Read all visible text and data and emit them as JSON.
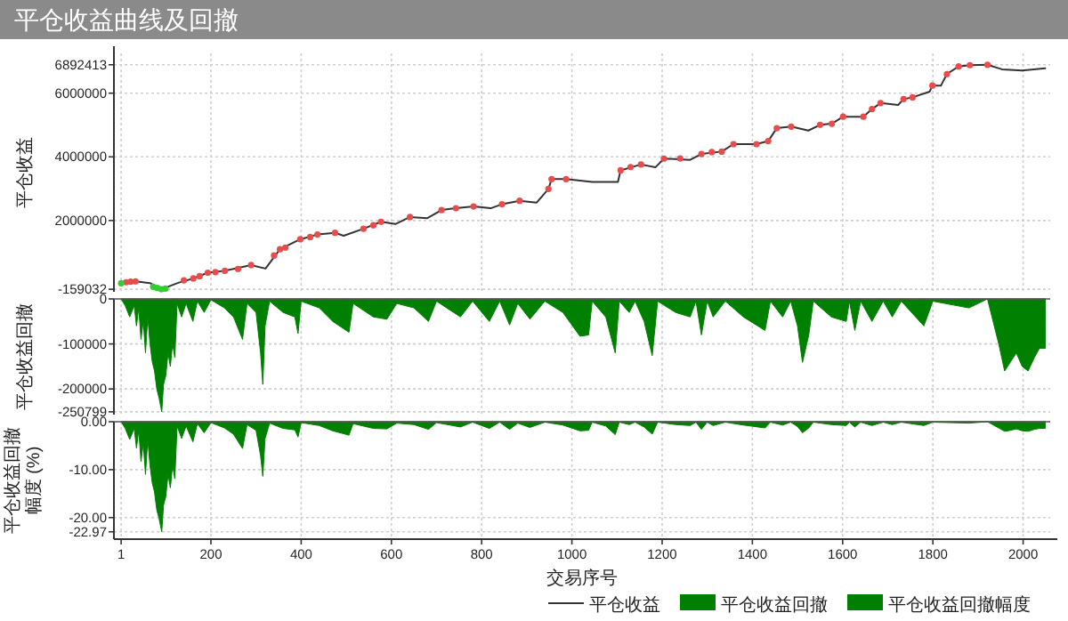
{
  "chart_data": [
    {
      "type": "line",
      "title": "平仓收益曲线及回撤",
      "ylabel": "平仓收益",
      "xlim": [
        -15,
        2060
      ],
      "xticks": [
        1,
        200,
        400,
        600,
        800,
        1000,
        1200,
        1400,
        1600,
        1800,
        2000
      ],
      "ylim": [
        -240000,
        7250000
      ],
      "yticks": [
        -159032,
        2000000,
        4000000,
        6000000,
        6892413
      ],
      "tick_labels": "y",
      "grid": true,
      "legend": "bottom",
      "series": [
        {
          "name": "平仓收益",
          "color": "#333333",
          "x": [
            1,
            33,
            65,
            90,
            129,
            161,
            193,
            231,
            289,
            321,
            353,
            398,
            436,
            475,
            494,
            538,
            577,
            609,
            641,
            679,
            711,
            743,
            782,
            820,
            845,
            884,
            922,
            948,
            955,
            987,
            1045,
            1102,
            1108,
            1153,
            1185,
            1204,
            1262,
            1287,
            1332,
            1358,
            1409,
            1435,
            1454,
            1486,
            1524,
            1550,
            1576,
            1601,
            1646,
            1665,
            1684,
            1723,
            1735,
            1755,
            1793,
            1799,
            1818,
            1831,
            1857,
            1882,
            1921,
            1953,
            1998,
            2049
          ],
          "values": [
            30000,
            88000,
            33000,
            -159032,
            50000,
            180000,
            360000,
            420000,
            600000,
            490000,
            1096000,
            1410000,
            1560000,
            1614000,
            1520000,
            1740000,
            1960000,
            1890000,
            2110000,
            2070000,
            2330000,
            2385000,
            2440000,
            2385000,
            2510000,
            2620000,
            2565000,
            2990000,
            3300000,
            3300000,
            3210000,
            3210000,
            3577000,
            3760000,
            3670000,
            3945000,
            3906000,
            4090000,
            4165000,
            4400000,
            4400000,
            4495000,
            4900000,
            4950000,
            4825000,
            5005000,
            5040000,
            5260000,
            5260000,
            5500000,
            5690000,
            5630000,
            5815000,
            5870000,
            6050000,
            6240000,
            6240000,
            6600000,
            6840000,
            6880000,
            6892413,
            6750000,
            6710000,
            6785000
          ]
        },
        {
          "type": "scatter",
          "color": "#e84c4c",
          "marker": "circle",
          "x": [
            12,
            22,
            33,
            140,
            161,
            175,
            193,
            210,
            231,
            260,
            289,
            340,
            353,
            365,
            398,
            420,
            436,
            475,
            538,
            560,
            577,
            641,
            711,
            743,
            782,
            845,
            884,
            948,
            955,
            987,
            1108,
            1130,
            1153,
            1204,
            1240,
            1287,
            1310,
            1332,
            1358,
            1409,
            1435,
            1454,
            1486,
            1550,
            1576,
            1601,
            1646,
            1665,
            1684,
            1735,
            1755,
            1799,
            1831,
            1857,
            1882,
            1921
          ],
          "values": [
            60000,
            80000,
            88000,
            120000,
            180000,
            250000,
            360000,
            380000,
            420000,
            480000,
            600000,
            900000,
            1096000,
            1150000,
            1410000,
            1480000,
            1560000,
            1614000,
            1740000,
            1850000,
            1960000,
            2110000,
            2330000,
            2385000,
            2440000,
            2510000,
            2620000,
            2990000,
            3300000,
            3300000,
            3577000,
            3680000,
            3760000,
            3945000,
            3950000,
            4090000,
            4150000,
            4165000,
            4400000,
            4400000,
            4495000,
            4900000,
            4950000,
            5005000,
            5040000,
            5260000,
            5260000,
            5500000,
            5690000,
            5815000,
            5870000,
            6240000,
            6600000,
            6840000,
            6880000,
            6892413
          ]
        },
        {
          "type": "scatter",
          "color": "#33cc33",
          "marker": "circle",
          "x": [
            1,
            72,
            81,
            90,
            99
          ],
          "values": [
            30000,
            -80000,
            -120000,
            -159032,
            -140000
          ]
        }
      ]
    },
    {
      "type": "area",
      "ylabel": "平仓收益回撤",
      "xlim": [
        -15,
        2060
      ],
      "xticks": [
        1,
        200,
        400,
        600,
        800,
        1000,
        1200,
        1400,
        1600,
        1800,
        2000
      ],
      "ylim": [
        -257000,
        0
      ],
      "yticks": [
        0,
        -100000,
        -200000,
        -250799
      ],
      "tick_labels": "y",
      "grid": true,
      "legend": "bottom",
      "series": [
        {
          "name": "平仓收益回撤",
          "color": "#008000",
          "x": [
            1,
            10,
            20,
            30,
            35,
            40,
            45,
            50,
            55,
            60,
            65,
            70,
            75,
            80,
            85,
            91,
            95,
            100,
            105,
            110,
            115,
            120,
            125,
            135,
            145,
            160,
            170,
            185,
            200,
            230,
            250,
            270,
            280,
            300,
            310,
            315,
            320,
            330,
            360,
            386,
            393,
            400,
            440,
            470,
            506,
            515,
            560,
            590,
            612,
            650,
            682,
            700,
            753,
            780,
            817,
            840,
            862,
            880,
            907,
            940,
            980,
            1018,
            1037,
            1045,
            1075,
            1096,
            1105,
            1127,
            1140,
            1160,
            1178,
            1190,
            1230,
            1262,
            1275,
            1287,
            1300,
            1313,
            1340,
            1380,
            1428,
            1440,
            1467,
            1485,
            1500,
            1511,
            1525,
            1535,
            1575,
            1608,
            1615,
            1627,
            1640,
            1665,
            1690,
            1710,
            1730,
            1780,
            1800,
            1880,
            1921,
            1946,
            1959,
            1972,
            1985,
            1998,
            2011,
            2025,
            2036,
            2049
          ],
          "values": [
            0,
            -15000,
            -40000,
            -15000,
            -60000,
            -20000,
            -90000,
            -50000,
            -120000,
            -40000,
            -100000,
            -140000,
            -160000,
            -200000,
            -220000,
            -250799,
            -190000,
            -170000,
            -120000,
            -150000,
            -100000,
            -130000,
            -10000,
            -40000,
            -10000,
            -50000,
            -5000,
            -30000,
            -2000,
            -20000,
            -40000,
            -90000,
            -10000,
            -30000,
            -120000,
            -190000,
            -60000,
            -5000,
            -30000,
            -40000,
            -77000,
            -5000,
            -20000,
            -50000,
            -74000,
            -10000,
            -40000,
            -45000,
            -10000,
            -20000,
            -50000,
            -5000,
            -40000,
            -5000,
            -50000,
            -5000,
            -58000,
            -10000,
            -45000,
            -5000,
            -30000,
            -83000,
            -80000,
            -5000,
            -40000,
            -120000,
            -5000,
            -30000,
            -5000,
            -50000,
            -126000,
            -5000,
            -30000,
            -40000,
            -5000,
            -80000,
            -5000,
            -40000,
            -5000,
            -40000,
            -70000,
            -5000,
            -40000,
            -5000,
            -60000,
            -141000,
            -80000,
            -5000,
            -40000,
            -50000,
            -5000,
            -70000,
            -5000,
            -50000,
            -5000,
            -40000,
            -5000,
            -60000,
            -5000,
            -20000,
            0,
            -100000,
            -160000,
            -140000,
            -120000,
            -150000,
            -160000,
            -130000,
            -110000,
            -110000
          ]
        }
      ]
    },
    {
      "type": "area",
      "ylabel": "平仓收益回撤幅度 (%)",
      "xlabel": "交易序号",
      "xlim": [
        -15,
        2060
      ],
      "xticks": [
        1,
        200,
        400,
        600,
        800,
        1000,
        1200,
        1400,
        1600,
        1800,
        2000
      ],
      "ylim": [
        -24.5,
        0
      ],
      "yticks": [
        {
          "value": 0,
          "label": "0.00"
        },
        {
          "value": -10,
          "label": "-10.00"
        },
        {
          "value": -20,
          "label": "-20.00"
        },
        {
          "value": -22.97,
          "label": "-22.97"
        }
      ],
      "grid": true,
      "legend": "bottom",
      "series": [
        {
          "name": "平仓收益回撤幅度",
          "color": "#008000",
          "x": [
            1,
            10,
            20,
            30,
            35,
            40,
            45,
            50,
            55,
            60,
            65,
            70,
            75,
            80,
            85,
            91,
            95,
            100,
            105,
            110,
            115,
            120,
            125,
            135,
            145,
            160,
            170,
            185,
            200,
            230,
            250,
            270,
            280,
            300,
            310,
            315,
            320,
            330,
            360,
            386,
            393,
            400,
            440,
            470,
            506,
            515,
            560,
            590,
            612,
            650,
            682,
            700,
            753,
            780,
            817,
            840,
            862,
            880,
            907,
            940,
            980,
            1018,
            1037,
            1045,
            1075,
            1096,
            1105,
            1127,
            1140,
            1160,
            1178,
            1190,
            1230,
            1262,
            1275,
            1287,
            1300,
            1313,
            1340,
            1380,
            1428,
            1440,
            1467,
            1485,
            1500,
            1511,
            1525,
            1535,
            1575,
            1608,
            1615,
            1627,
            1640,
            1665,
            1690,
            1710,
            1730,
            1780,
            1800,
            1880,
            1921,
            1946,
            1959,
            1972,
            1985,
            1998,
            2011,
            2025,
            2036,
            2049
          ],
          "values": [
            0,
            -1.4,
            -3.7,
            -1.4,
            -5.5,
            -1.8,
            -8.3,
            -4.6,
            -11,
            -3.7,
            -9.2,
            -12.8,
            -14.7,
            -18.4,
            -20.2,
            -22.97,
            -17.4,
            -15.6,
            -11,
            -13.8,
            -9.2,
            -11.9,
            -0.9,
            -3.5,
            -0.9,
            -4.2,
            -0.4,
            -2.3,
            -0.2,
            -1.3,
            -2.6,
            -5.6,
            -0.6,
            -1.8,
            -7.1,
            -11.4,
            -3.5,
            -0.3,
            -1.4,
            -1.7,
            -3.2,
            -0.2,
            -0.8,
            -1.9,
            -2.8,
            -0.4,
            -1.4,
            -1.5,
            -0.3,
            -0.6,
            -1.6,
            -0.2,
            -1.1,
            -0.1,
            -1.4,
            -0.1,
            -1.6,
            -0.3,
            -1.2,
            -0.1,
            -0.7,
            -1.9,
            -1.8,
            -0.1,
            -0.9,
            -2.7,
            -0.1,
            -0.6,
            -0.1,
            -1.1,
            -2.6,
            -0.1,
            -0.6,
            -0.8,
            -0.1,
            -1.6,
            -0.1,
            -0.8,
            -0.1,
            -0.7,
            -1.3,
            -0.1,
            -0.7,
            -0.1,
            -1,
            -2.3,
            -1.3,
            -0.1,
            -0.6,
            -0.8,
            -0.1,
            -1.1,
            -0.1,
            -0.8,
            -0.1,
            -0.6,
            -0.1,
            -0.8,
            -0.1,
            -0.3,
            0,
            -1.3,
            -2,
            -1.8,
            -1.5,
            -1.9,
            -2,
            -1.6,
            -1.4,
            -1.4
          ]
        }
      ]
    }
  ]
}
